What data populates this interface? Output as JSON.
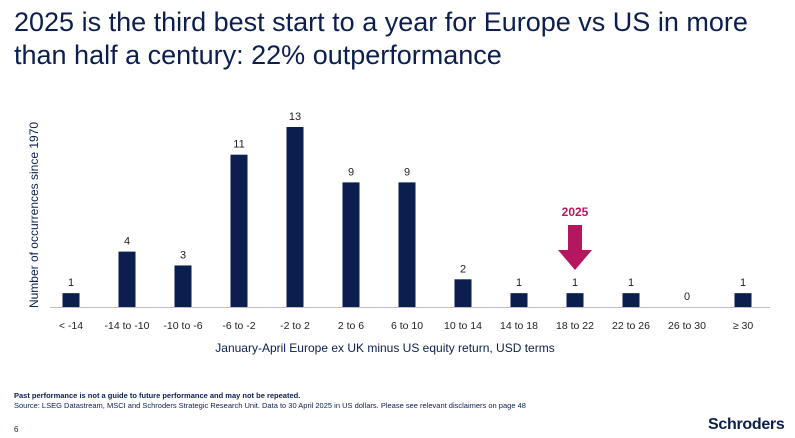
{
  "title": "2025 is the third best start to a year for Europe vs US in more than half a century: 22% outperformance",
  "footer": {
    "disclaimer": "Past performance is not a guide to future performance and may not be repeated.",
    "source": "Source: LSEG Datastream, MSCI and Schroders Strategic Research Unit. Data to 30 April 2025 in US dollars. Please see relevant disclaimers on page 48",
    "page_number": "6",
    "logo": "Schroders"
  },
  "colors": {
    "bar": "#0b1e4e",
    "highlight": "#b5175f",
    "text": "#0b1e4e"
  },
  "chart_data": {
    "type": "bar",
    "categories": [
      "< -14",
      "-14 to -10",
      "-10 to -6",
      "-6 to -2",
      "-2 to 2",
      "2 to 6",
      "6 to 10",
      "10 to 14",
      "14 to 18",
      "18 to 22",
      "22 to 26",
      "26 to 30",
      "≥ 30"
    ],
    "values": [
      1,
      4,
      3,
      11,
      13,
      9,
      9,
      2,
      1,
      1,
      1,
      0,
      1
    ],
    "xlabel": "January-April Europe ex UK minus US equity return, USD terms",
    "ylabel": "Number of occurrences since 1970",
    "ylim": [
      0,
      13
    ],
    "grid": false,
    "annotation": {
      "category": "18 to 22",
      "label": "2025",
      "icon": "down-arrow-icon"
    }
  }
}
